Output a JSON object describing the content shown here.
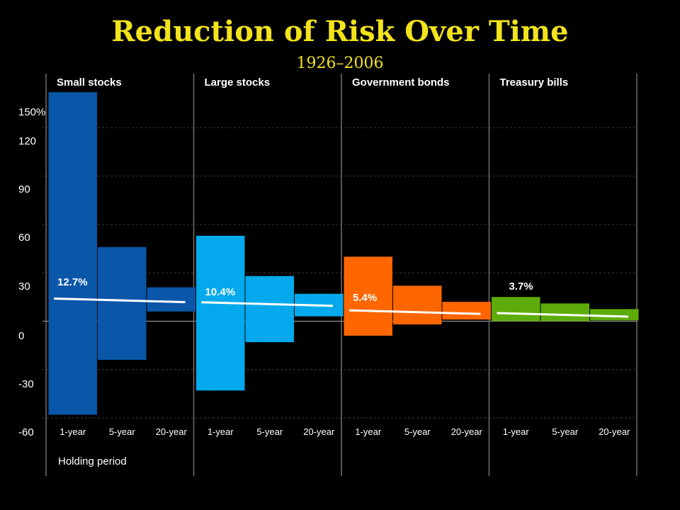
{
  "chart_data": {
    "type": "bar",
    "title": "Reduction of Risk Over Time",
    "subtitle": "1926–2006",
    "xlabel": "Holding period",
    "ylabel": "",
    "y_unit": "%",
    "ylim": [
      -60,
      150
    ],
    "y_ticks": [
      150,
      120,
      90,
      60,
      30,
      0,
      -30,
      -60
    ],
    "y_tick_labels": [
      "150%",
      "120",
      "90",
      "60",
      "30",
      "0",
      "-30",
      "-60"
    ],
    "categories": [
      "1-year",
      "5-year",
      "20-year"
    ],
    "grid": true,
    "series": [
      {
        "name": "Small stocks",
        "color": "#0a56a8",
        "ranges": [
          [
            -58,
            142
          ],
          [
            -24,
            46
          ],
          [
            6,
            21
          ]
        ],
        "average": 12.7,
        "average_label": "12.7%"
      },
      {
        "name": "Large stocks",
        "color": "#03a9ec",
        "ranges": [
          [
            -43,
            53
          ],
          [
            -13,
            28
          ],
          [
            3,
            17
          ]
        ],
        "average": 10.4,
        "average_label": "10.4%"
      },
      {
        "name": "Government bonds",
        "color": "#ff6600",
        "ranges": [
          [
            -9,
            40
          ],
          [
            -2,
            22
          ],
          [
            1,
            12
          ]
        ],
        "average": 5.4,
        "average_label": "5.4%"
      },
      {
        "name": "Treasury bills",
        "color": "#5eac0a",
        "ranges": [
          [
            0,
            15
          ],
          [
            0,
            11
          ],
          [
            0.5,
            7.5
          ]
        ],
        "average": 3.7,
        "average_label": "3.7%"
      }
    ]
  }
}
